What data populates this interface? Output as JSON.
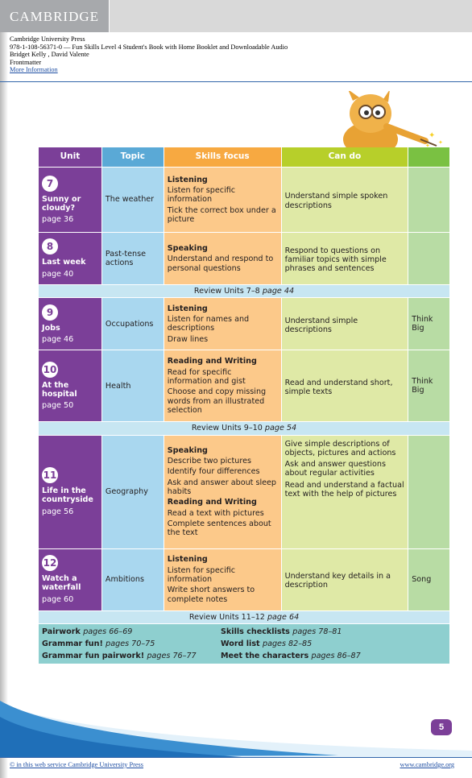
{
  "header": {
    "logo": "CAMBRIDGE",
    "publisher": "Cambridge University Press",
    "isbn_title": "978-1-108-56371-0 — Fun Skills Level 4 Student's Book with Home Booklet and Downloadable Audio",
    "authors": "Bridget Kelly , David Valente",
    "section": "Frontmatter",
    "more_info": "More Information"
  },
  "table": {
    "headers": {
      "unit": "Unit",
      "topic": "Topic",
      "skills": "Skills focus",
      "cando": "Can do",
      "extra": ""
    },
    "units": [
      {
        "num": "7",
        "title": "Sunny or cloudy?",
        "page": "page 36",
        "topic": "The weather",
        "skill_heading": "Listening",
        "skills": [
          "Listen for specific information",
          "Tick the correct box under a picture"
        ],
        "cando": [
          "Understand simple spoken descriptions"
        ],
        "extra": ""
      },
      {
        "num": "8",
        "title": "Last week",
        "page": "page 40",
        "topic": "Past-tense actions",
        "skill_heading": "Speaking",
        "skills": [
          "Understand and respond to personal questions"
        ],
        "cando": [
          "Respond to questions on familiar topics with simple phrases and sentences"
        ],
        "extra": ""
      }
    ],
    "review1": {
      "text": "Review Units 7–8 ",
      "page": "page 44"
    },
    "units2": [
      {
        "num": "9",
        "title": "Jobs",
        "page": "page 46",
        "topic": "Occupations",
        "skill_heading": "Listening",
        "skills": [
          "Listen for names and descriptions",
          "Draw lines"
        ],
        "cando": [
          "Understand simple descriptions"
        ],
        "extra": "Think Big"
      },
      {
        "num": "10",
        "title": "At the hospital",
        "page": "page 50",
        "topic": "Health",
        "skill_heading": "Reading and Writing",
        "skills": [
          "Read for specific information and gist",
          "Choose and copy missing words from an illustrated selection"
        ],
        "cando": [
          "Read and understand short, simple texts"
        ],
        "extra": "Think Big"
      }
    ],
    "review2": {
      "text": "Review Units 9–10 ",
      "page": "page 54"
    },
    "unit11": {
      "num": "11",
      "title": "Life in the countryside",
      "page": "page 56",
      "topic": "Geography",
      "skill_heading1": "Speaking",
      "skills1": [
        "Describe two pictures",
        "Identify four differences",
        "Ask and answer about sleep habits"
      ],
      "skill_heading2": "Reading and Writing",
      "skills2": [
        "Read a text with pictures",
        "Complete sentences about the text"
      ],
      "cando": [
        "Give simple descriptions of objects, pictures and actions",
        "Ask and answer questions about regular activities",
        "Read and understand a factual text with the help of pictures"
      ],
      "extra": ""
    },
    "unit12": {
      "num": "12",
      "title": "Watch a waterfall",
      "page": "page 60",
      "topic": "Ambitions",
      "skill_heading": "Listening",
      "skills": [
        "Listen for specific information",
        "Write short answers to complete notes"
      ],
      "cando": [
        "Understand key details in a description"
      ],
      "extra": "Song"
    },
    "review3": {
      "text": "Review Units 11–12 ",
      "page": "page 64"
    },
    "footer": [
      {
        "label": "Pairwork ",
        "pages": "pages 66–69",
        "label2": "Skills checklists ",
        "pages2": "pages 78–81"
      },
      {
        "label": "Grammar fun! ",
        "pages": "pages 70–75",
        "label2": "Word list ",
        "pages2": "pages 82–85"
      },
      {
        "label": "Grammar fun pairwork! ",
        "pages": "pages 76–77",
        "label2": "Meet the characters ",
        "pages2": "pages 86–87"
      }
    ]
  },
  "page_number": "5",
  "footer": {
    "left": "© in this web service Cambridge University Press",
    "right": "www.cambridge.org"
  },
  "colors": {
    "unit": "#7b3f98",
    "topic": "#a9d7ef",
    "skills": "#fcc98a",
    "cando": "#dfe9a6",
    "extra": "#b8dca4",
    "review": "#c7e6f2",
    "footer": "#8ecfcf"
  }
}
